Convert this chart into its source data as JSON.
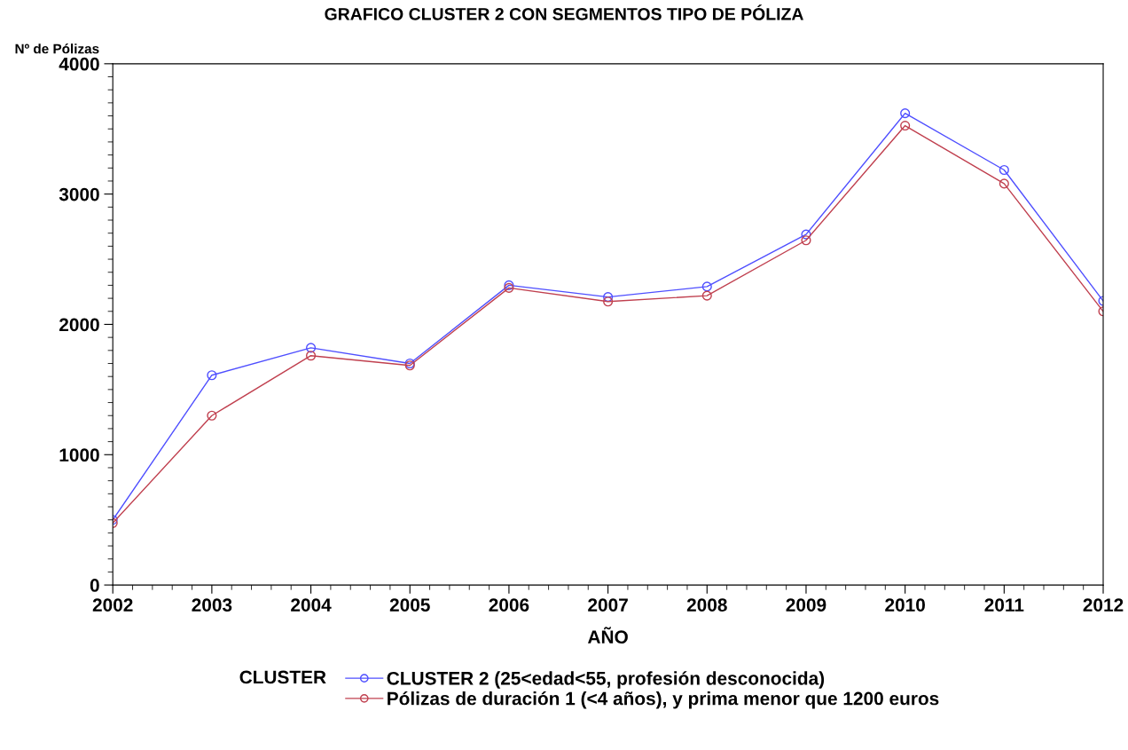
{
  "chart_data": {
    "type": "line",
    "title": "GRAFICO CLUSTER 2 CON SEGMENTOS TIPO DE PÓLIZA",
    "xlabel": "AÑO",
    "ylabel": "Nº de Pólizas",
    "legend_title": "CLUSTER",
    "x": [
      2002,
      2003,
      2004,
      2005,
      2006,
      2007,
      2008,
      2009,
      2010,
      2011,
      2012
    ],
    "series": [
      {
        "name": "CLUSTER 2 (25<edad<55, profesión desconocida)",
        "color": "#4f4fff",
        "values": [
          500,
          1610,
          1820,
          1700,
          2300,
          2210,
          2290,
          2690,
          3620,
          3185,
          2180
        ]
      },
      {
        "name": "Pólizas de duración 1 (<4 años), y prima menor que 1200 euros",
        "color": "#c0404f",
        "values": [
          475,
          1300,
          1760,
          1685,
          2280,
          2175,
          2220,
          2645,
          3525,
          3080,
          2100
        ]
      }
    ],
    "xlim": [
      2002,
      2012
    ],
    "xticks": [
      2002,
      2003,
      2004,
      2005,
      2006,
      2007,
      2008,
      2009,
      2010,
      2011,
      2012
    ],
    "ylim": [
      0,
      4000
    ],
    "yticks": [
      0,
      1000,
      2000,
      3000,
      4000
    ],
    "grid": false,
    "legend": "bottom",
    "marker": "circle",
    "line_style": "solid"
  }
}
